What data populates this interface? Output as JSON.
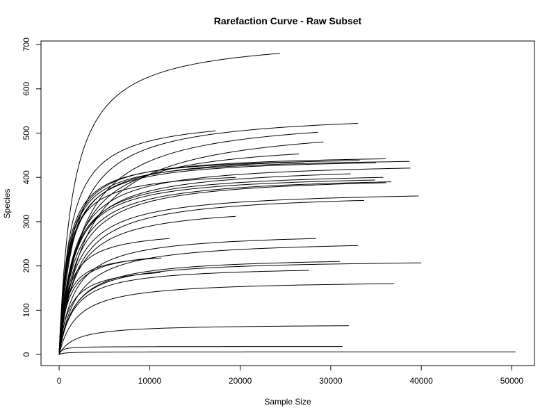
{
  "chart_data": {
    "type": "line",
    "title": "Rarefaction Curve - Raw Subset",
    "xlabel": "Sample Size",
    "ylabel": "Species",
    "xlim": [
      -2000,
      52500
    ],
    "ylim": [
      -25,
      708
    ],
    "x_ticks": [
      0,
      10000,
      20000,
      30000,
      40000,
      50000
    ],
    "x_tick_labels": [
      "0",
      "10000",
      "20000",
      "30000",
      "40000",
      "50000"
    ],
    "y_ticks": [
      0,
      100,
      200,
      300,
      400,
      500,
      600,
      700
    ],
    "y_tick_labels": [
      "0",
      "100",
      "200",
      "300",
      "400",
      "500",
      "600",
      "700"
    ],
    "grid": false,
    "legend": "none",
    "line_color": "#000000",
    "series": [
      {
        "x_max": 24400,
        "y_max": 680,
        "half_sat": 1500
      },
      {
        "x_max": 33000,
        "y_max": 522,
        "half_sat": 1800
      },
      {
        "x_max": 17300,
        "y_max": 505,
        "half_sat": 1200
      },
      {
        "x_max": 28600,
        "y_max": 502,
        "half_sat": 2500
      },
      {
        "x_max": 29200,
        "y_max": 480,
        "half_sat": 3000
      },
      {
        "x_max": 26500,
        "y_max": 453,
        "half_sat": 2000
      },
      {
        "x_max": 36100,
        "y_max": 442,
        "half_sat": 1000
      },
      {
        "x_max": 33200,
        "y_max": 438,
        "half_sat": 900
      },
      {
        "x_max": 38700,
        "y_max": 436,
        "half_sat": 1000
      },
      {
        "x_max": 35000,
        "y_max": 433,
        "half_sat": 1100
      },
      {
        "x_max": 27000,
        "y_max": 435,
        "half_sat": 1200
      },
      {
        "x_max": 38800,
        "y_max": 421,
        "half_sat": 1500
      },
      {
        "x_max": 32200,
        "y_max": 408,
        "half_sat": 1600
      },
      {
        "x_max": 19500,
        "y_max": 400,
        "half_sat": 900
      },
      {
        "x_max": 35800,
        "y_max": 400,
        "half_sat": 1400
      },
      {
        "x_max": 34900,
        "y_max": 394,
        "half_sat": 1400
      },
      {
        "x_max": 36700,
        "y_max": 390,
        "half_sat": 1600
      },
      {
        "x_max": 36100,
        "y_max": 388,
        "half_sat": 1800
      },
      {
        "x_max": 39700,
        "y_max": 358,
        "half_sat": 1700
      },
      {
        "x_max": 33700,
        "y_max": 348,
        "half_sat": 1900
      },
      {
        "x_max": 19500,
        "y_max": 312,
        "half_sat": 1700
      },
      {
        "x_max": 12200,
        "y_max": 262,
        "half_sat": 1000
      },
      {
        "x_max": 28400,
        "y_max": 262,
        "half_sat": 1700
      },
      {
        "x_max": 33000,
        "y_max": 246,
        "half_sat": 2000
      },
      {
        "x_max": 11300,
        "y_max": 218,
        "half_sat": 800
      },
      {
        "x_max": 10400,
        "y_max": 218,
        "half_sat": 1000
      },
      {
        "x_max": 31000,
        "y_max": 210,
        "half_sat": 1800
      },
      {
        "x_max": 40000,
        "y_max": 207,
        "half_sat": 1700
      },
      {
        "x_max": 27600,
        "y_max": 190,
        "half_sat": 1600
      },
      {
        "x_max": 11200,
        "y_max": 185,
        "half_sat": 1100
      },
      {
        "x_max": 37000,
        "y_max": 160,
        "half_sat": 2000
      },
      {
        "x_max": 32000,
        "y_max": 65,
        "half_sat": 1800
      },
      {
        "x_max": 31300,
        "y_max": 18,
        "half_sat": 300
      },
      {
        "x_max": 50400,
        "y_max": 6,
        "half_sat": 600
      }
    ]
  }
}
